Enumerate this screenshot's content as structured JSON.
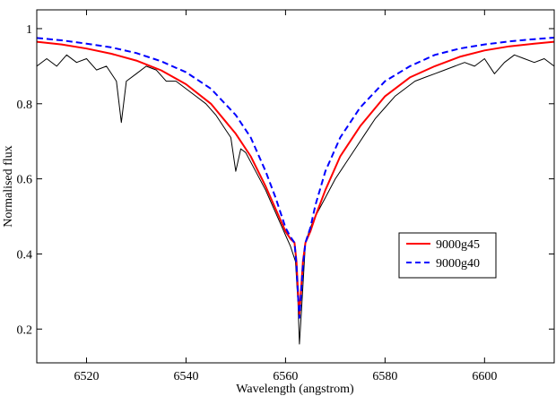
{
  "chart_data": {
    "type": "line",
    "title": "",
    "xlabel": "Wavelength (angstrom)",
    "ylabel": "Normalised flux",
    "xlim": [
      6510,
      6614
    ],
    "ylim": [
      0.11,
      1.05
    ],
    "x_ticks": [
      6520,
      6540,
      6560,
      6580,
      6600
    ],
    "y_ticks": [
      0.2,
      0.4,
      0.6,
      0.8,
      1
    ],
    "x_tick_labels": [
      "6520",
      "6540",
      "6560",
      "6580",
      "6600"
    ],
    "y_tick_labels": [
      "0.2",
      "0.4",
      "0.6",
      "0.8",
      "1"
    ],
    "grid": false,
    "legend_position": "lower-right",
    "series": [
      {
        "name": "",
        "style": "solid",
        "color": "#000000",
        "x": [
          6510,
          6512,
          6514,
          6516,
          6518,
          6520,
          6522,
          6524,
          6526,
          6527,
          6528,
          6530,
          6532,
          6534,
          6536,
          6538,
          6540,
          6542,
          6544,
          6546,
          6548,
          6549,
          6550,
          6551,
          6552,
          6554,
          6556,
          6558,
          6559,
          6560,
          6561,
          6562,
          6562.5,
          6562.8,
          6563.2,
          6564,
          6565,
          6566,
          6568,
          6570,
          6572,
          6574,
          6576,
          6578,
          6580,
          6582,
          6584,
          6586,
          6588,
          6590,
          6592,
          6594,
          6596,
          6598,
          6600,
          6602,
          6604,
          6606,
          6608,
          6610,
          6612,
          6614
        ],
        "y": [
          0.9,
          0.92,
          0.9,
          0.93,
          0.91,
          0.92,
          0.89,
          0.9,
          0.86,
          0.75,
          0.86,
          0.88,
          0.9,
          0.89,
          0.86,
          0.86,
          0.84,
          0.82,
          0.8,
          0.77,
          0.73,
          0.71,
          0.62,
          0.68,
          0.67,
          0.62,
          0.57,
          0.51,
          0.48,
          0.45,
          0.42,
          0.38,
          0.27,
          0.16,
          0.25,
          0.43,
          0.47,
          0.5,
          0.55,
          0.6,
          0.64,
          0.68,
          0.72,
          0.76,
          0.79,
          0.82,
          0.84,
          0.86,
          0.87,
          0.88,
          0.89,
          0.9,
          0.91,
          0.9,
          0.92,
          0.88,
          0.91,
          0.93,
          0.92,
          0.91,
          0.92,
          0.9
        ]
      },
      {
        "name": "9000g45",
        "style": "solid",
        "color": "#ff0000",
        "x": [
          6510,
          6515,
          6520,
          6525,
          6530,
          6535,
          6540,
          6545,
          6550,
          6553,
          6556,
          6558,
          6560,
          6561,
          6561.8,
          6562.2,
          6562.5,
          6562.8,
          6563.1,
          6563.5,
          6564,
          6565,
          6566,
          6568,
          6571,
          6575,
          6580,
          6585,
          6590,
          6595,
          6600,
          6605,
          6610,
          6614
        ],
        "y": [
          0.965,
          0.958,
          0.947,
          0.933,
          0.915,
          0.889,
          0.852,
          0.8,
          0.72,
          0.66,
          0.58,
          0.52,
          0.46,
          0.44,
          0.43,
          0.38,
          0.3,
          0.24,
          0.3,
          0.38,
          0.43,
          0.46,
          0.5,
          0.57,
          0.66,
          0.74,
          0.82,
          0.87,
          0.9,
          0.925,
          0.942,
          0.953,
          0.96,
          0.965
        ]
      },
      {
        "name": "9000g40",
        "style": "dashed",
        "color": "#0000ff",
        "x": [
          6510,
          6515,
          6520,
          6525,
          6530,
          6535,
          6540,
          6545,
          6550,
          6553,
          6556,
          6558,
          6560,
          6561,
          6561.8,
          6562.2,
          6562.5,
          6562.8,
          6563.1,
          6563.5,
          6564,
          6565,
          6566,
          6568,
          6571,
          6575,
          6580,
          6585,
          6590,
          6595,
          6600,
          6605,
          6610,
          6614
        ],
        "y": [
          0.975,
          0.969,
          0.96,
          0.95,
          0.935,
          0.913,
          0.884,
          0.84,
          0.77,
          0.71,
          0.62,
          0.55,
          0.47,
          0.445,
          0.43,
          0.37,
          0.29,
          0.23,
          0.29,
          0.37,
          0.43,
          0.47,
          0.53,
          0.62,
          0.71,
          0.79,
          0.86,
          0.9,
          0.93,
          0.947,
          0.958,
          0.966,
          0.972,
          0.976
        ]
      }
    ]
  }
}
